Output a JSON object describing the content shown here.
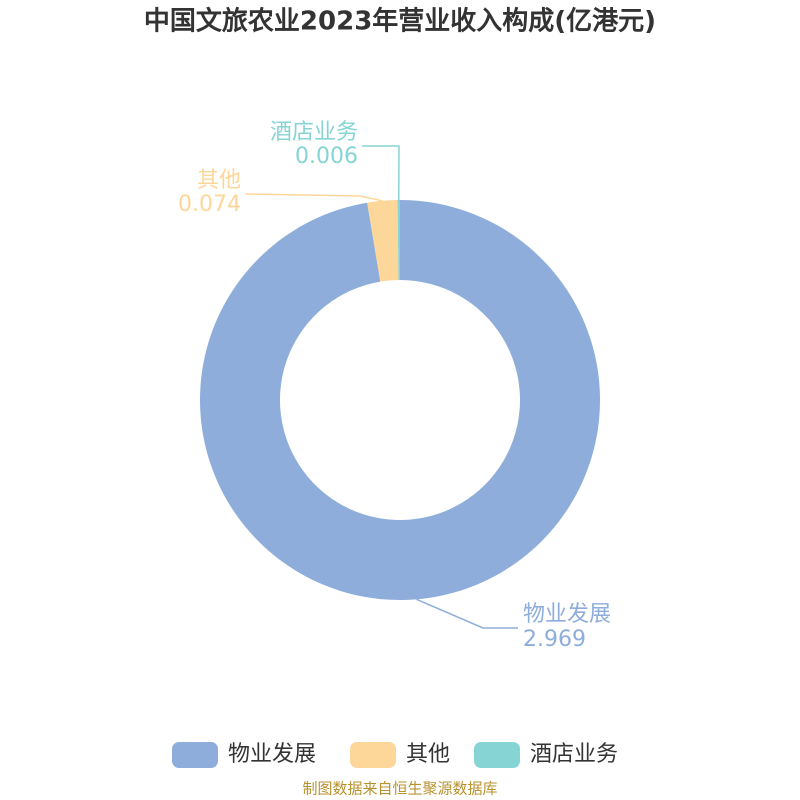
{
  "chart_data": {
    "type": "donut",
    "title": "中国文旅农业2023年营业收入构成(亿港元)",
    "categories": [
      "物业发展",
      "其他",
      "酒店业务"
    ],
    "values": [
      2.969,
      0.074,
      0.006
    ],
    "colors": [
      "#8eaddb",
      "#fdd79a",
      "#86d4d4"
    ],
    "source": "制图数据来自恒生聚源数据库"
  }
}
